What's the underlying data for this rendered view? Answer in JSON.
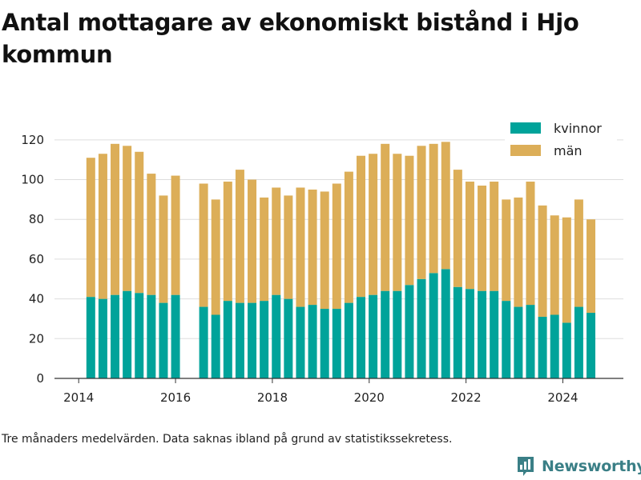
{
  "title": "Antal mottagare av ekonomiskt bistånd i Hjo kommun",
  "footnote": "Tre månaders medelvärden. Data saknas ibland på grund av statistikssekretess.",
  "brand": {
    "name": "Newsworthy",
    "color": "#3a7f86",
    "icon": "newsworthy-logo-icon"
  },
  "colors": {
    "kvinnor": "#00a39a",
    "man": "#dcae58",
    "grid": "#dddddd",
    "axis": "#333333"
  },
  "chart_data": {
    "type": "bar",
    "stacked": true,
    "title": "Antal mottagare av ekonomiskt bistånd i Hjo kommun",
    "xlabel": "",
    "ylabel": "",
    "ylim": [
      0,
      130
    ],
    "yticks": [
      0,
      20,
      40,
      60,
      80,
      100,
      120
    ],
    "xlim": [
      2013.5,
      2025.25
    ],
    "xticks": [
      2014,
      2016,
      2018,
      2020,
      2022,
      2024
    ],
    "legend_position": "top-right",
    "grid": true,
    "x": [
      2014.25,
      2014.5,
      2014.75,
      2015.0,
      2015.25,
      2015.5,
      2015.75,
      2016.0,
      2016.58,
      2016.83,
      2017.08,
      2017.33,
      2017.58,
      2017.83,
      2018.08,
      2018.33,
      2018.58,
      2018.83,
      2019.08,
      2019.33,
      2019.58,
      2019.83,
      2020.08,
      2020.33,
      2020.58,
      2020.83,
      2021.08,
      2021.33,
      2021.58,
      2021.83,
      2022.08,
      2022.33,
      2022.58,
      2022.83,
      2023.08,
      2023.33,
      2023.58,
      2023.83,
      2024.08,
      2024.33,
      2024.58
    ],
    "series": [
      {
        "name": "kvinnor",
        "color": "#00a39a",
        "values": [
          41,
          40,
          42,
          44,
          43,
          42,
          38,
          42,
          36,
          32,
          39,
          38,
          38,
          39,
          42,
          40,
          36,
          37,
          35,
          35,
          38,
          41,
          42,
          44,
          44,
          47,
          50,
          53,
          55,
          46,
          45,
          44,
          44,
          39,
          36,
          37,
          31,
          32,
          28,
          36,
          33
        ]
      },
      {
        "name": "män",
        "color": "#dcae58",
        "values": [
          70,
          73,
          76,
          73,
          71,
          61,
          54,
          60,
          62,
          58,
          60,
          67,
          62,
          52,
          54,
          52,
          60,
          58,
          59,
          63,
          66,
          71,
          71,
          74,
          69,
          65,
          67,
          65,
          64,
          59,
          54,
          53,
          55,
          51,
          55,
          62,
          56,
          50,
          53,
          54,
          47
        ]
      }
    ]
  }
}
